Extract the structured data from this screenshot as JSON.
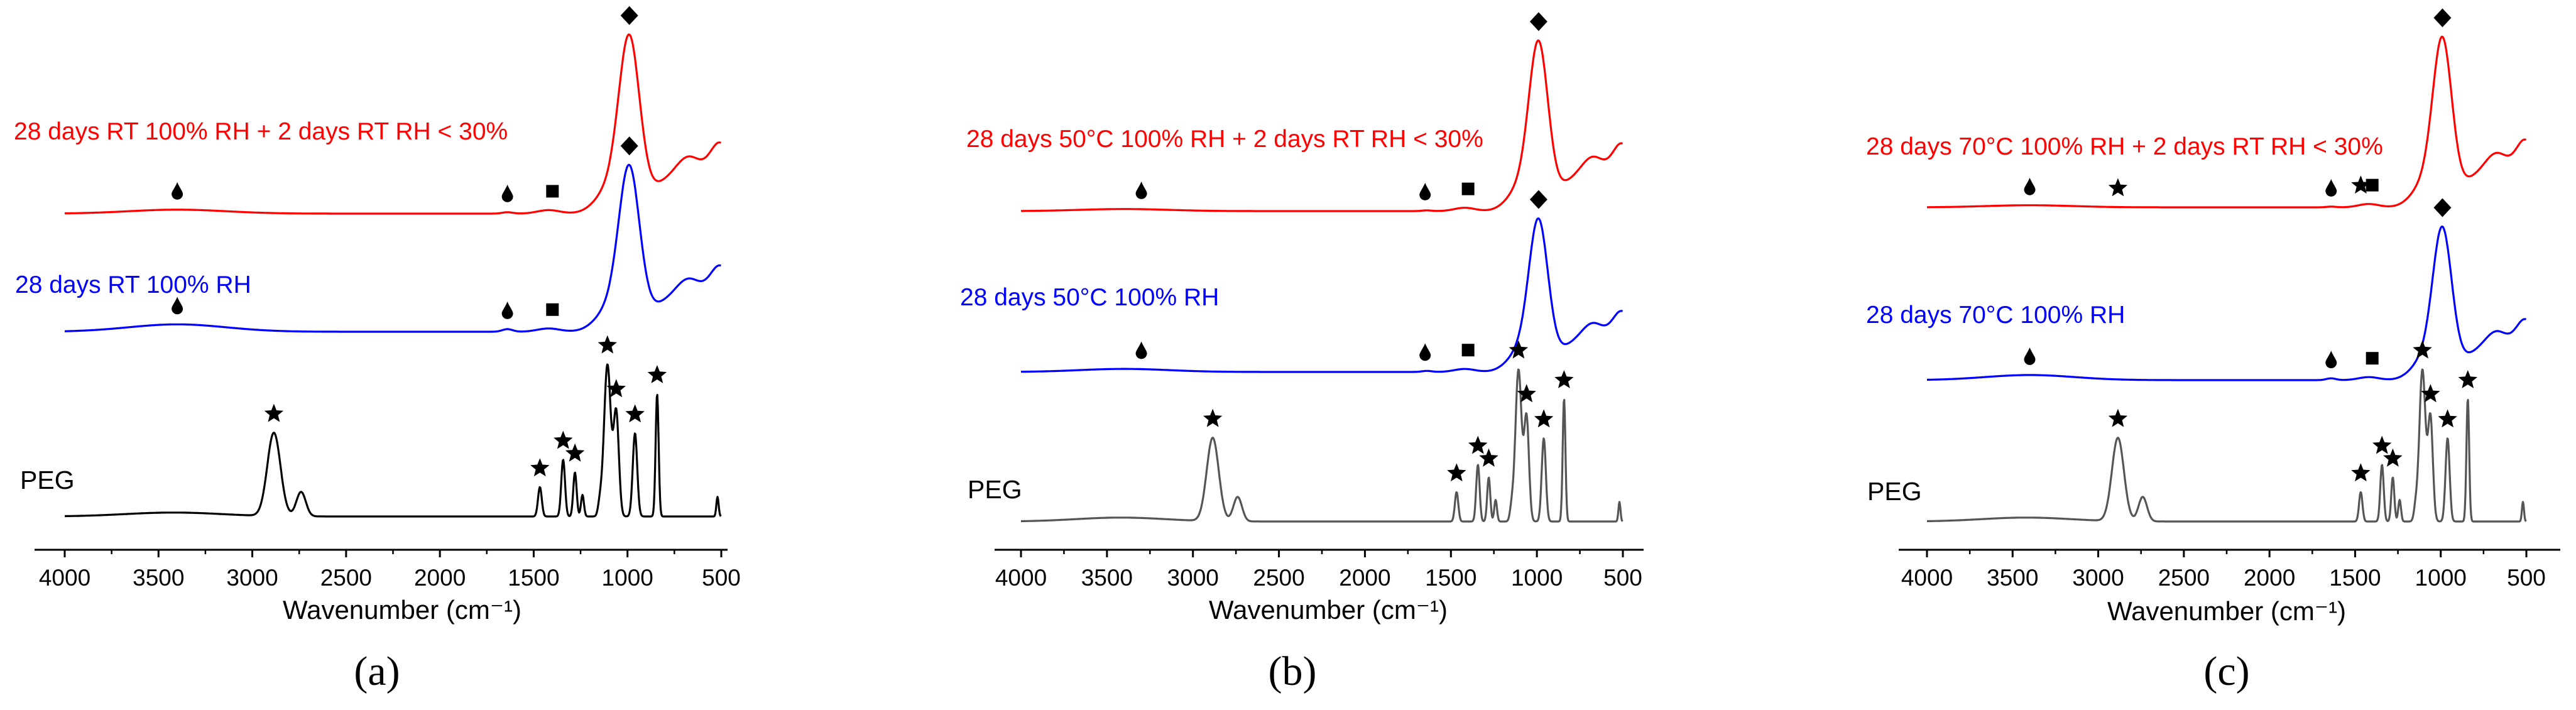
{
  "chart_data": [
    {
      "type": "line",
      "panel_label": "(a)",
      "xlabel": "Wavenumber (cm⁻¹)",
      "xlim": [
        4000,
        500
      ],
      "xticks": [
        4000,
        3500,
        3000,
        2500,
        2000,
        1500,
        1000,
        500
      ],
      "y_axis_shown": false,
      "series": [
        {
          "name": "PEG",
          "label": "PEG",
          "color": "#000000",
          "markers": [
            {
              "symbol": "star",
              "x": 2885
            },
            {
              "symbol": "star",
              "x": 1467
            },
            {
              "symbol": "star",
              "x": 1343
            },
            {
              "symbol": "star",
              "x": 1280
            },
            {
              "symbol": "star",
              "x": 1107
            },
            {
              "symbol": "star",
              "x": 1060
            },
            {
              "symbol": "star",
              "x": 960
            },
            {
              "symbol": "star",
              "x": 842
            }
          ]
        },
        {
          "name": "28 days RT 100% RH",
          "label": "28 days RT 100% RH",
          "color": "#0000ff",
          "markers": [
            {
              "symbol": "drop",
              "x": 3400
            },
            {
              "symbol": "drop",
              "x": 1640
            },
            {
              "symbol": "square",
              "x": 1400
            },
            {
              "symbol": "diamond",
              "x": 990
            }
          ]
        },
        {
          "name": "28 days RT 100% RH + 2 days RT RH < 30%",
          "label": "28 days RT 100% RH + 2 days RT RH < 30%",
          "color": "#ff0000",
          "markers": [
            {
              "symbol": "drop",
              "x": 3400
            },
            {
              "symbol": "drop",
              "x": 1640
            },
            {
              "symbol": "square",
              "x": 1400
            },
            {
              "symbol": "diamond",
              "x": 990
            }
          ]
        }
      ]
    },
    {
      "type": "line",
      "panel_label": "(b)",
      "xlabel": "Wavenumber (cm⁻¹)",
      "xlim": [
        4000,
        500
      ],
      "xticks": [
        4000,
        3500,
        3000,
        2500,
        2000,
        1500,
        1000,
        500
      ],
      "y_axis_shown": false,
      "series": [
        {
          "name": "PEG",
          "label": "PEG",
          "color": "#555555",
          "markers": [
            {
              "symbol": "star",
              "x": 2885
            },
            {
              "symbol": "star",
              "x": 1467
            },
            {
              "symbol": "star",
              "x": 1343
            },
            {
              "symbol": "star",
              "x": 1280
            },
            {
              "symbol": "star",
              "x": 1107
            },
            {
              "symbol": "star",
              "x": 1060
            },
            {
              "symbol": "star",
              "x": 960
            },
            {
              "symbol": "star",
              "x": 842
            }
          ]
        },
        {
          "name": "28 days 50°C 100% RH",
          "label": "28 days 50°C 100% RH",
          "color": "#0000ff",
          "markers": [
            {
              "symbol": "drop",
              "x": 3300
            },
            {
              "symbol": "drop",
              "x": 1650
            },
            {
              "symbol": "square",
              "x": 1400
            },
            {
              "symbol": "diamond",
              "x": 990
            }
          ]
        },
        {
          "name": "28 days 50°C 100% RH + 2 days RT RH < 30%",
          "label": "28 days 50°C 100% RH + 2 days RT RH < 30%",
          "color": "#ff0000",
          "markers": [
            {
              "symbol": "drop",
              "x": 3300
            },
            {
              "symbol": "drop",
              "x": 1650
            },
            {
              "symbol": "square",
              "x": 1400
            },
            {
              "symbol": "diamond",
              "x": 990
            }
          ]
        }
      ]
    },
    {
      "type": "line",
      "panel_label": "(c)",
      "xlabel": "Wavenumber (cm⁻¹)",
      "xlim": [
        4000,
        500
      ],
      "xticks": [
        4000,
        3500,
        3000,
        2500,
        2000,
        1500,
        1000,
        500
      ],
      "y_axis_shown": false,
      "series": [
        {
          "name": "PEG",
          "label": "PEG",
          "color": "#555555",
          "markers": [
            {
              "symbol": "star",
              "x": 2885
            },
            {
              "symbol": "star",
              "x": 1467
            },
            {
              "symbol": "star",
              "x": 1343
            },
            {
              "symbol": "star",
              "x": 1280
            },
            {
              "symbol": "star",
              "x": 1107
            },
            {
              "symbol": "star",
              "x": 1060
            },
            {
              "symbol": "star",
              "x": 960
            },
            {
              "symbol": "star",
              "x": 842
            }
          ]
        },
        {
          "name": "28 days 70°C 100% RH",
          "label": "28 days 70°C 100% RH",
          "color": "#0000ff",
          "markers": [
            {
              "symbol": "drop",
              "x": 3400
            },
            {
              "symbol": "drop",
              "x": 1640
            },
            {
              "symbol": "square",
              "x": 1400
            },
            {
              "symbol": "diamond",
              "x": 990
            }
          ]
        },
        {
          "name": "28 days 70°C 100% RH + 2 days RT RH < 30%",
          "label": "28 days 70°C 100% RH + 2 days RT RH < 30%",
          "color": "#ff0000",
          "markers": [
            {
              "symbol": "drop",
              "x": 3400
            },
            {
              "symbol": "star",
              "x": 2885
            },
            {
              "symbol": "drop",
              "x": 1640
            },
            {
              "symbol": "star",
              "x": 1467
            },
            {
              "symbol": "square",
              "x": 1400
            },
            {
              "symbol": "diamond",
              "x": 990
            }
          ]
        }
      ]
    }
  ]
}
